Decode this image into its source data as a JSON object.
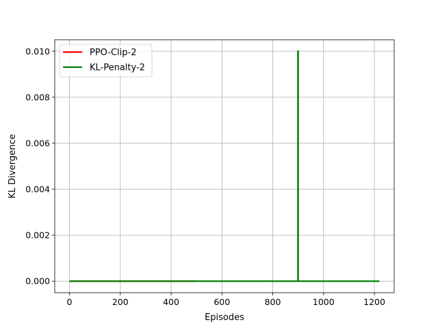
{
  "chart_data": {
    "type": "line",
    "title": "",
    "xlabel": "Episodes",
    "ylabel": "KL Divergence",
    "xlim": [
      -58,
      1278
    ],
    "ylim": [
      -0.0005,
      0.0105
    ],
    "xticks": [
      0,
      200,
      400,
      600,
      800,
      1000,
      1200
    ],
    "xtick_labels": [
      "0",
      "200",
      "400",
      "600",
      "800",
      "1000",
      "1200"
    ],
    "yticks": [
      0.0,
      0.002,
      0.004,
      0.006,
      0.008,
      0.01
    ],
    "ytick_labels": [
      "0.000",
      "0.002",
      "0.004",
      "0.006",
      "0.008",
      "0.010"
    ],
    "grid": true,
    "legend_position": "top-left",
    "series": [
      {
        "name": "PPO-Clip-2",
        "color": "#ff0000",
        "x": [
          0,
          500
        ],
        "y": [
          0.0,
          0.0
        ]
      },
      {
        "name": "KL-Penalty-2",
        "color": "#008000",
        "x": [
          0,
          899,
          899,
          900,
          900,
          1220
        ],
        "y": [
          0.0,
          0.0,
          0.01,
          0.01,
          0.0,
          0.0
        ]
      }
    ]
  }
}
